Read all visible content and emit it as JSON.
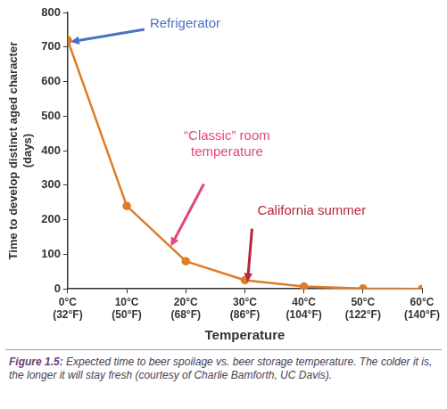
{
  "chart_data": {
    "type": "line",
    "x": [
      0,
      10,
      20,
      30,
      40,
      50,
      60
    ],
    "values": [
      720,
      240,
      80,
      25,
      7,
      1,
      0
    ],
    "color": "#e07b28",
    "marker": "circle",
    "xlabel": "Temperature",
    "ylabel": "Time to develop distinct aged character (days)",
    "xlim": [
      0,
      60
    ],
    "xticks": [
      {
        "value": 0,
        "label": "0°C (32°F)"
      },
      {
        "value": 10,
        "label": "10°C (50°F)"
      },
      {
        "value": 20,
        "label": "20°C (68°F)"
      },
      {
        "value": 30,
        "label": "30°C (86°F)"
      },
      {
        "value": 40,
        "label": "40°C (104°F)"
      },
      {
        "value": 50,
        "label": "50°C (122°F)"
      },
      {
        "value": 60,
        "label": "60°C (140°F)"
      }
    ],
    "ylim": [
      0,
      800
    ],
    "yticks": [
      0,
      100,
      200,
      300,
      400,
      500,
      600,
      700,
      800
    ],
    "grid": false,
    "annotations": [
      {
        "text": "Refrigerator",
        "color": "#4a72c4",
        "x": 0,
        "y": 720
      },
      {
        "text": "“Classic” room temperature",
        "color": "#e0487e",
        "x": 17,
        "y": 128
      },
      {
        "text": "California summer",
        "color": "#b5283a",
        "x": 30,
        "y": 25
      }
    ]
  },
  "caption": {
    "label": "Figure 1.5:",
    "text": "Expected time to beer spoilage vs. beer storage temperature. The colder it is, the longer it will stay fresh (courtesy of Charlie Bamforth, UC Davis)."
  }
}
